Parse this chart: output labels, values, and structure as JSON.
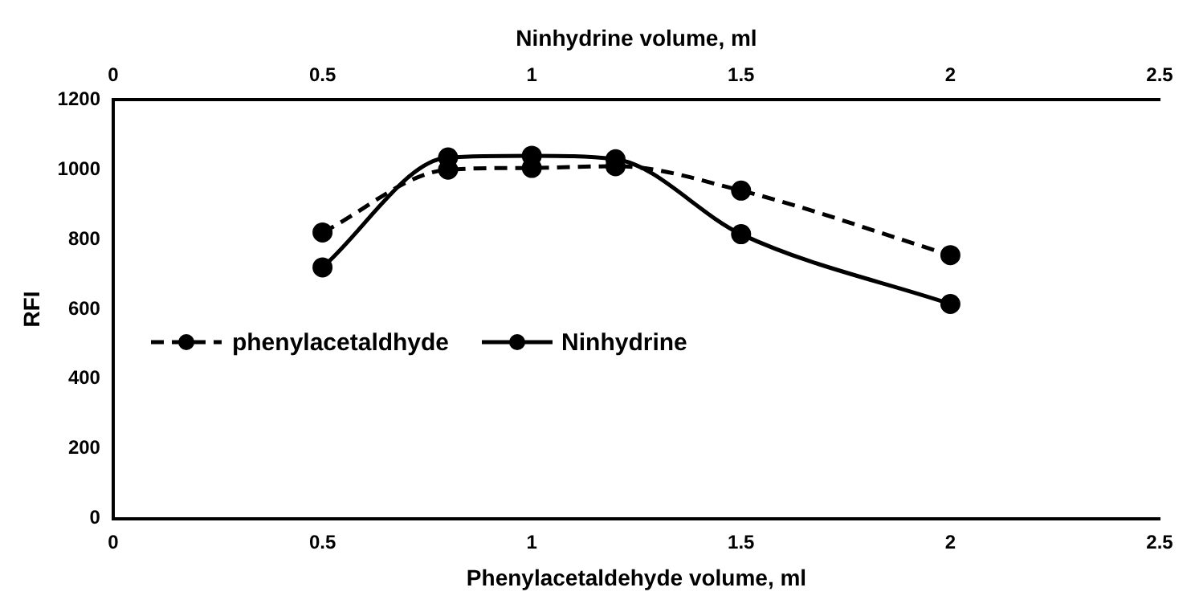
{
  "chart_data": {
    "type": "line",
    "xlabel": "Phenylacetaldehyde volume, ml",
    "x2label": "Ninhydrine volume, ml",
    "ylabel": "RFI",
    "x": [
      0.5,
      0.8,
      1,
      1.2,
      1.5,
      2
    ],
    "series": [
      {
        "name": "phenylacetaldhyde",
        "color": "#000000",
        "values": [
          820,
          1000,
          1005,
          1010,
          940,
          755
        ],
        "line_style": "dashed"
      },
      {
        "name": "Ninhydrine",
        "color": "#000000",
        "values": [
          720,
          1035,
          1040,
          1030,
          815,
          615
        ],
        "line_style": "solid"
      }
    ],
    "xlim": [
      0,
      2.5
    ],
    "xticks": [
      0,
      0.5,
      1,
      1.5,
      2,
      2.5
    ],
    "x2lim": [
      0,
      2.5
    ],
    "x2ticks": [
      0,
      0.5,
      1,
      1.5,
      2,
      2.5
    ],
    "ylim": [
      0,
      1200
    ],
    "yticks": [
      0,
      200,
      400,
      600,
      800,
      1000,
      1200
    ],
    "grid": false,
    "legend": "left",
    "marker": "circle"
  }
}
